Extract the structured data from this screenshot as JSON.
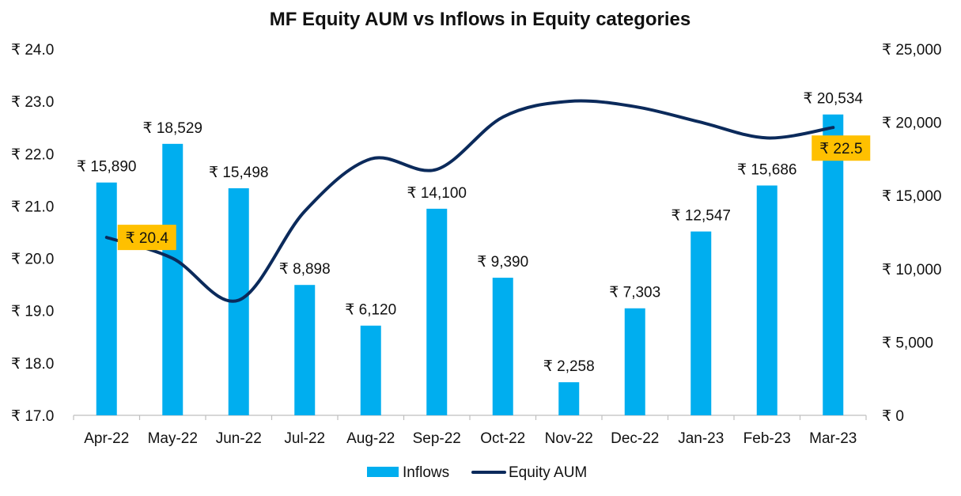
{
  "chart_data": {
    "type": "bar+line",
    "title": "MF Equity AUM vs Inflows in Equity categories",
    "categories": [
      "Apr-22",
      "May-22",
      "Jun-22",
      "Jul-22",
      "Aug-22",
      "Sep-22",
      "Oct-22",
      "Nov-22",
      "Dec-22",
      "Jan-23",
      "Feb-23",
      "Mar-23"
    ],
    "series": [
      {
        "name": "Inflows",
        "kind": "bar",
        "axis": "right",
        "color": "#00AEEF",
        "values": [
          15890,
          18529,
          15498,
          8898,
          6120,
          14100,
          9390,
          2258,
          7303,
          12547,
          15686,
          20534
        ],
        "labels": [
          "₹ 15,890",
          "₹ 18,529",
          "₹ 15,498",
          "₹ 8,898",
          "₹ 6,120",
          "₹ 14,100",
          "₹ 9,390",
          "₹ 2,258",
          "₹ 7,303",
          "₹ 12,547",
          "₹ 15,686",
          "₹ 20,534"
        ]
      },
      {
        "name": "Equity AUM",
        "kind": "line",
        "axis": "left",
        "color": "#0B2A5B",
        "values": [
          20.4,
          20.0,
          19.2,
          20.9,
          21.9,
          21.7,
          22.7,
          23.0,
          22.9,
          22.6,
          22.3,
          22.5
        ],
        "labels": [
          "₹ 20.4",
          "₹ 22.5"
        ],
        "label_indices": [
          0,
          11
        ],
        "label_bg": "#FFC000"
      }
    ],
    "y_left": {
      "ylim": [
        17.0,
        24.0
      ],
      "ticks": [
        17.0,
        18.0,
        19.0,
        20.0,
        21.0,
        22.0,
        23.0,
        24.0
      ],
      "tick_labels": [
        "₹ 17.0",
        "₹ 18.0",
        "₹ 19.0",
        "₹ 20.0",
        "₹ 21.0",
        "₹ 22.0",
        "₹ 23.0",
        "₹ 24.0"
      ]
    },
    "y_right": {
      "ylim": [
        0,
        25000
      ],
      "ticks": [
        0,
        5000,
        10000,
        15000,
        20000,
        25000
      ],
      "tick_labels": [
        "₹ 0",
        "₹ 5,000",
        "₹ 10,000",
        "₹ 15,000",
        "₹ 20,000",
        "₹ 25,000"
      ]
    },
    "grid": false,
    "legend": {
      "position": "bottom",
      "entries": [
        "Inflows",
        "Equity AUM"
      ]
    }
  }
}
